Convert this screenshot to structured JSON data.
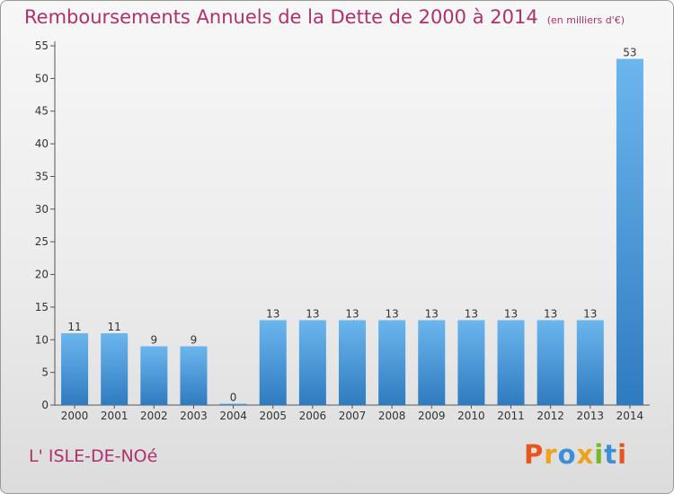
{
  "title": "Remboursements Annuels de la Dette de 2000 à 2014",
  "subtitle": "(en milliers d'€)",
  "commune": "L' ISLE-DE-NOé",
  "logo": {
    "letters": [
      "P",
      "r",
      "o",
      "x",
      "i",
      "t",
      "i"
    ],
    "colors": [
      "#e8561e",
      "#f0a21c",
      "#3a8fd6",
      "#f0a21c",
      "#76b82a",
      "#3a8fd6",
      "#e8561e"
    ]
  },
  "colors": {
    "bar_top": "#6cb6ee",
    "bar_bottom": "#2f7bc0",
    "axis": "#555555",
    "grid": "#cfcfcf",
    "title": "#b0306a"
  },
  "chart_data": {
    "type": "bar",
    "title": "Remboursements Annuels de la Dette de 2000 à 2014",
    "subtitle": "(en milliers d'€)",
    "xlabel": "",
    "ylabel": "",
    "categories": [
      "2000",
      "2001",
      "2002",
      "2003",
      "2004",
      "2005",
      "2006",
      "2007",
      "2008",
      "2009",
      "2010",
      "2011",
      "2012",
      "2013",
      "2014"
    ],
    "values": [
      11,
      11,
      9,
      9,
      0,
      13,
      13,
      13,
      13,
      13,
      13,
      13,
      13,
      13,
      53
    ],
    "value_labels": [
      "11",
      "11",
      "9",
      "9",
      "0",
      "13",
      "13",
      "13",
      "13",
      "13",
      "13",
      "13",
      "13",
      "13",
      "53"
    ],
    "ylim": [
      0,
      55
    ],
    "yticks": [
      0,
      5,
      10,
      15,
      20,
      25,
      30,
      35,
      40,
      45,
      50,
      55
    ],
    "grid": false,
    "legend": "none"
  }
}
